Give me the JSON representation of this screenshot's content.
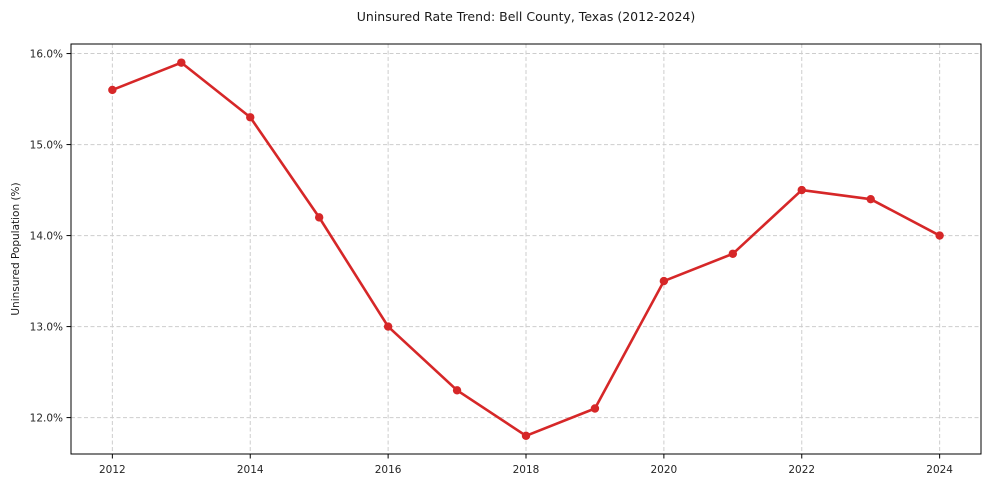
{
  "chart_data": {
    "type": "line",
    "title": "Uninsured Rate Trend: Bell County, Texas (2012-2024)",
    "xlabel": "",
    "ylabel": "Uninsured Population (%)",
    "x": [
      2012,
      2013,
      2014,
      2015,
      2016,
      2017,
      2018,
      2019,
      2020,
      2021,
      2022,
      2023,
      2024
    ],
    "values": [
      15.6,
      15.9,
      15.3,
      14.2,
      13.0,
      12.3,
      11.8,
      12.1,
      13.5,
      13.8,
      14.5,
      14.4,
      14.0
    ],
    "xticks": [
      2012,
      2014,
      2016,
      2018,
      2020,
      2022,
      2024
    ],
    "xtick_labels": [
      "2012",
      "2014",
      "2016",
      "2018",
      "2020",
      "2022",
      "2024"
    ],
    "yticks": [
      12,
      13,
      14,
      15,
      16
    ],
    "ytick_labels": [
      "12.0%",
      "13.0%",
      "14.0%",
      "15.0%",
      "16.0%"
    ],
    "xlim": [
      2011.4,
      2024.6
    ],
    "ylim": [
      11.6,
      16.105
    ],
    "grid": true,
    "grid_style": "dashed",
    "legend": "none",
    "colors": {
      "line": "#d62728",
      "marker": "#d62728",
      "grid": "#cdcdcd",
      "spine": "#000000",
      "tick_text": "#262626",
      "background": "#ffffff"
    }
  }
}
